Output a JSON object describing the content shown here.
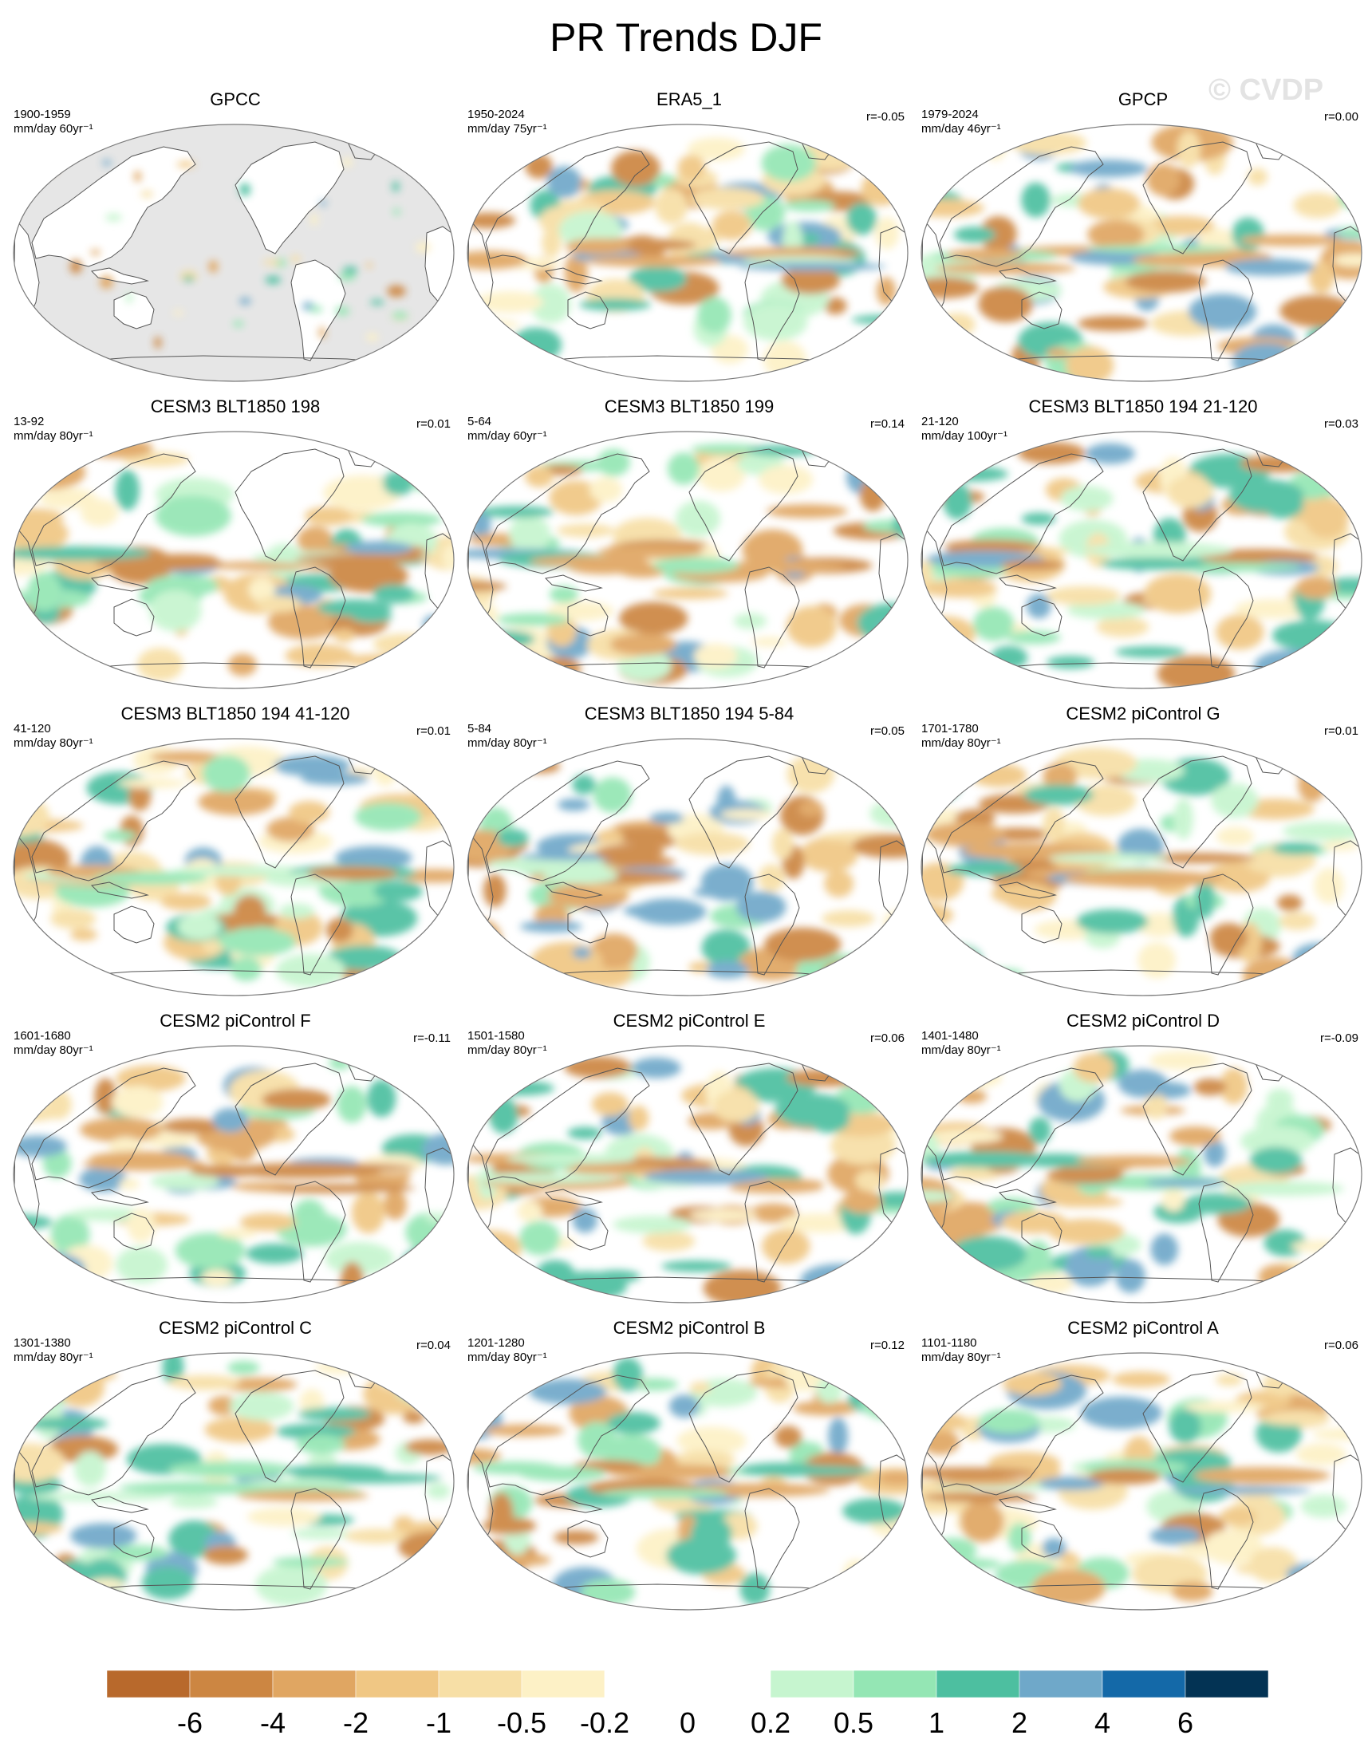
{
  "title": "PR Trends DJF",
  "watermark": "© CVDP",
  "colors": {
    "land_mask": "#e6e6e6",
    "coast": "#555555",
    "border": "#7a7a7a"
  },
  "panels": [
    {
      "title": "GPCC",
      "period": "1900-1959",
      "units": "mm/day 60yr⁻¹",
      "corr": "",
      "masked": true
    },
    {
      "title": "ERA5_1",
      "period": "1950-2024",
      "units": "mm/day 75yr⁻¹",
      "corr": "r=-0.05"
    },
    {
      "title": "GPCP",
      "period": "1979-2024",
      "units": "mm/day 46yr⁻¹",
      "corr": "r=0.00"
    },
    {
      "title": "CESM3 BLT1850 198",
      "period": "13-92",
      "units": "mm/day 80yr⁻¹",
      "corr": "r=0.01"
    },
    {
      "title": "CESM3 BLT1850 199",
      "period": "5-64",
      "units": "mm/day 60yr⁻¹",
      "corr": "r=0.14"
    },
    {
      "title": "CESM3 BLT1850 194 21-120",
      "period": "21-120",
      "units": "mm/day 100yr⁻¹",
      "corr": "r=0.03"
    },
    {
      "title": "CESM3 BLT1850 194 41-120",
      "period": "41-120",
      "units": "mm/day 80yr⁻¹",
      "corr": "r=0.01"
    },
    {
      "title": "CESM3 BLT1850 194 5-84",
      "period": "5-84",
      "units": "mm/day 80yr⁻¹",
      "corr": "r=0.05"
    },
    {
      "title": "CESM2 piControl G",
      "period": "1701-1780",
      "units": "mm/day 80yr⁻¹",
      "corr": "r=0.01"
    },
    {
      "title": "CESM2 piControl F",
      "period": "1601-1680",
      "units": "mm/day 80yr⁻¹",
      "corr": "r=-0.11"
    },
    {
      "title": "CESM2 piControl E",
      "period": "1501-1580",
      "units": "mm/day 80yr⁻¹",
      "corr": "r=0.06"
    },
    {
      "title": "CESM2 piControl D",
      "period": "1401-1480",
      "units": "mm/day 80yr⁻¹",
      "corr": "r=-0.09"
    },
    {
      "title": "CESM2 piControl C",
      "period": "1301-1380",
      "units": "mm/day 80yr⁻¹",
      "corr": "r=0.04"
    },
    {
      "title": "CESM2 piControl B",
      "period": "1201-1280",
      "units": "mm/day 80yr⁻¹",
      "corr": "r=0.12"
    },
    {
      "title": "CESM2 piControl A",
      "period": "1101-1180",
      "units": "mm/day 80yr⁻¹",
      "corr": "r=0.06"
    }
  ],
  "colorbar": {
    "labels": [
      "-6",
      "-4",
      "-2",
      "-1",
      "-0.5",
      "-0.2",
      "0",
      "0.2",
      "0.5",
      "1",
      "2",
      "4",
      "6"
    ],
    "colors": [
      "#b8692c",
      "#cc8642",
      "#e0a662",
      "#f0c784",
      "#f7dfa6",
      "#fdf1c6",
      "#ffffff",
      "#ffffff",
      "#c6f5cf",
      "#94e6b4",
      "#4dbfa0",
      "#6fa8c9",
      "#1469a8",
      "#033354"
    ]
  }
}
